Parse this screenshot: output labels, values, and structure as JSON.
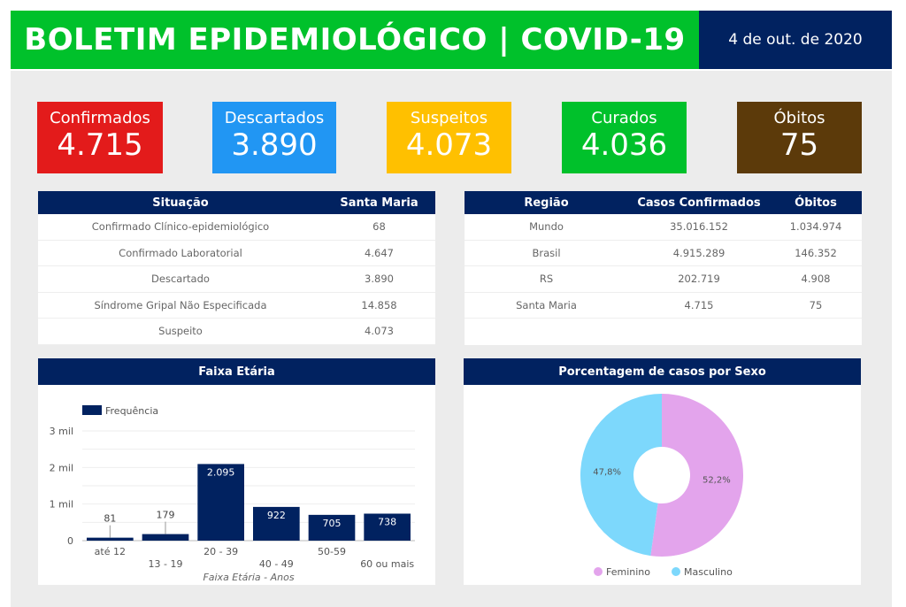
{
  "header": {
    "title": "BOLETIM EPIDEMIOLÓGICO | COVID-19",
    "date": "4 de out. de 2020"
  },
  "kpis": [
    {
      "label": "Confirmados",
      "value": "4.715",
      "color": "#e31b1b"
    },
    {
      "label": "Descartados",
      "value": "3.890",
      "color": "#2196f3"
    },
    {
      "label": "Suspeitos",
      "value": "4.073",
      "color": "#ffc000"
    },
    {
      "label": "Curados",
      "value": "4.036",
      "color": "#00c12b"
    },
    {
      "label": "Óbitos",
      "value": "75",
      "color": "#5c3a0a"
    }
  ],
  "situacao": {
    "headers": [
      "Situação",
      "Santa Maria"
    ],
    "rows": [
      [
        "Confirmado Clínico-epidemiológico",
        "68"
      ],
      [
        "Confirmado Laboratorial",
        "4.647"
      ],
      [
        "Descartado",
        "3.890"
      ],
      [
        "Síndrome Gripal Não Especificada",
        "14.858"
      ],
      [
        "Suspeito",
        "4.073"
      ]
    ]
  },
  "regiao": {
    "headers": [
      "Região",
      "Casos Confirmados",
      "Óbitos"
    ],
    "rows": [
      [
        "Mundo",
        "35.016.152",
        "1.034.974"
      ],
      [
        "Brasil",
        "4.915.289",
        "146.352"
      ],
      [
        "RS",
        "202.719",
        "4.908"
      ],
      [
        "Santa Maria",
        "4.715",
        "75"
      ]
    ]
  },
  "chart_data": [
    {
      "type": "bar",
      "title": "Faixa Etária",
      "xlabel": "Faixa Etária - Anos",
      "ylabel": "",
      "categories": [
        "até 12",
        "13 - 19",
        "20 - 39",
        "40 - 49",
        "50-59",
        "60 ou mais"
      ],
      "series": [
        {
          "name": "Frequência",
          "values": [
            81,
            179,
            2095,
            922,
            705,
            738
          ],
          "labels": [
            "81",
            "179",
            "2.095",
            "922",
            "705",
            "738"
          ],
          "color": "#012260"
        }
      ],
      "yticks": [
        "0",
        "1 mil",
        "2 mil",
        "3 mil"
      ],
      "ylim": [
        0,
        3000
      ],
      "grid": true,
      "legend": "top-left"
    },
    {
      "type": "pie",
      "title": "Porcentagem de casos por Sexo",
      "slices": [
        {
          "name": "Feminino",
          "value": 52.2,
          "label": "52,2%",
          "color": "#e3a4ec"
        },
        {
          "name": "Masculino",
          "value": 47.8,
          "label": "47,8%",
          "color": "#7dd8fc"
        }
      ],
      "donut": true,
      "legend": "bottom"
    }
  ]
}
